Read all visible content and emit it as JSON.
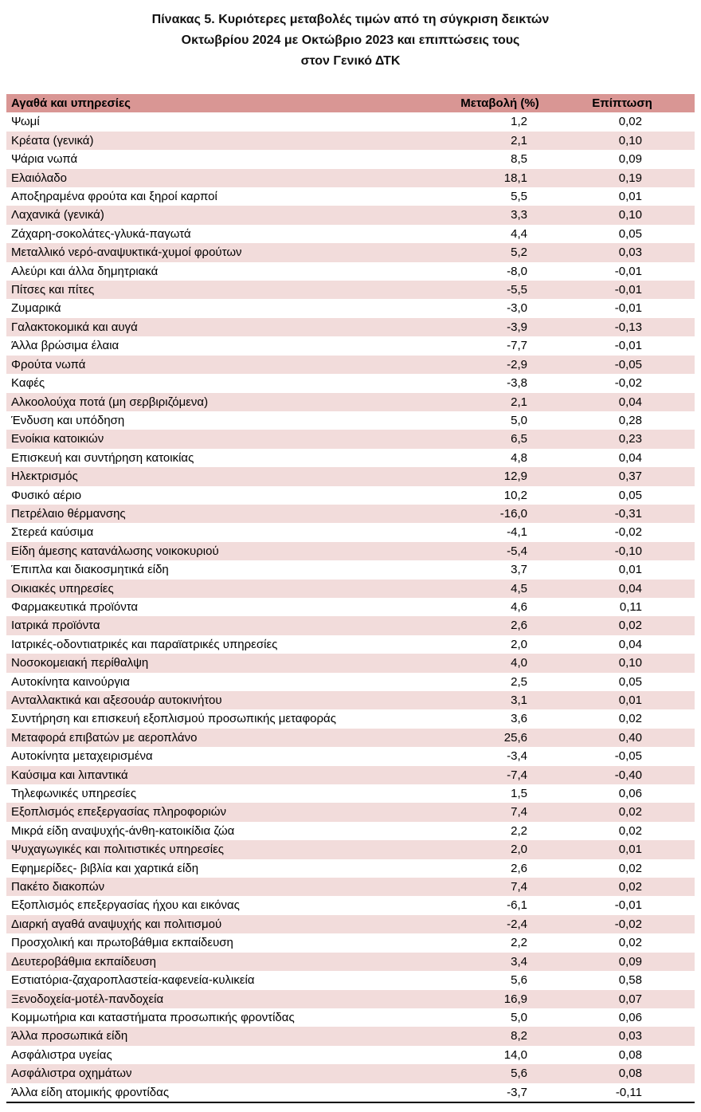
{
  "title": {
    "line1": "Πίνακας  5. Κυριότερες μεταβολές τιμών από τη σύγκριση δεικτών",
    "line2": "Οκτωβρίου 2024 με Οκτώβριο 2023 και επιπτώσεις τους",
    "line3": "στον Γενικό ΔΤΚ"
  },
  "colors": {
    "header_bg": "#d99694",
    "alt_row_bg": "#f2dcdb",
    "row_bg": "#ffffff",
    "text": "#000000"
  },
  "chart_data": {
    "type": "table",
    "title": "Πίνακας 5. Κυριότερες μεταβολές τιμών από τη σύγκριση δεικτών Οκτωβρίου 2024 με Οκτώβριο 2023 και επιπτώσεις τους στον Γενικό ΔΤΚ",
    "columns": [
      "Αγαθά και υπηρεσίες",
      "Μεταβολή (%)",
      "Επίπτωση"
    ],
    "rows": [
      [
        "Ψωμί",
        "1,2",
        "0,02"
      ],
      [
        "Κρέατα (γενικά)",
        "2,1",
        "0,10"
      ],
      [
        "Ψάρια νωπά",
        "8,5",
        "0,09"
      ],
      [
        "Ελαιόλαδο",
        "18,1",
        "0,19"
      ],
      [
        "Αποξηραμένα φρούτα και ξηροί καρποί",
        "5,5",
        "0,01"
      ],
      [
        "Λαχανικά (γενικά)",
        "3,3",
        "0,10"
      ],
      [
        "Ζάχαρη-σοκολάτες-γλυκά-παγωτά",
        "4,4",
        "0,05"
      ],
      [
        "Μεταλλικό νερό-αναψυκτικά-χυμοί φρούτων",
        "5,2",
        "0,03"
      ],
      [
        "Αλεύρι και άλλα δημητριακά",
        "-8,0",
        "-0,01"
      ],
      [
        "Πίτσες και πίτες",
        "-5,5",
        "-0,01"
      ],
      [
        "Ζυμαρικά",
        "-3,0",
        "-0,01"
      ],
      [
        "Γαλακτοκομικά και αυγά",
        "-3,9",
        "-0,13"
      ],
      [
        "Άλλα βρώσιμα έλαια",
        "-7,7",
        "-0,01"
      ],
      [
        "Φρούτα νωπά",
        "-2,9",
        "-0,05"
      ],
      [
        "Καφές",
        "-3,8",
        "-0,02"
      ],
      [
        "Αλκοολούχα ποτά (μη σερβιριζόμενα)",
        "2,1",
        "0,04"
      ],
      [
        "Ένδυση και υπόδηση",
        "5,0",
        "0,28"
      ],
      [
        "Ενοίκια κατοικιών",
        "6,5",
        "0,23"
      ],
      [
        "Επισκευή και συντήρηση κατοικίας",
        "4,8",
        "0,04"
      ],
      [
        "Ηλεκτρισμός",
        "12,9",
        "0,37"
      ],
      [
        "Φυσικό αέριο",
        "10,2",
        "0,05"
      ],
      [
        "Πετρέλαιο θέρμανσης",
        "-16,0",
        "-0,31"
      ],
      [
        "Στερεά καύσιμα",
        "-4,1",
        "-0,02"
      ],
      [
        "Είδη άμεσης κατανάλωσης νοικοκυριού",
        "-5,4",
        "-0,10"
      ],
      [
        "Έπιπλα και διακοσμητικά είδη",
        "3,7",
        "0,01"
      ],
      [
        "Οικιακές υπηρεσίες",
        "4,5",
        "0,04"
      ],
      [
        "Φαρμακευτικά προϊόντα",
        "4,6",
        "0,11"
      ],
      [
        "Ιατρικά προϊόντα",
        "2,6",
        "0,02"
      ],
      [
        "Ιατρικές-οδοντιατρικές και παραϊατρικές υπηρεσίες",
        "2,0",
        "0,04"
      ],
      [
        "Νοσοκομειακή περίθαλψη",
        "4,0",
        "0,10"
      ],
      [
        "Αυτοκίνητα καινούργια",
        "2,5",
        "0,05"
      ],
      [
        "Ανταλλακτικά και αξεσουάρ αυτοκινήτου",
        "3,1",
        "0,01"
      ],
      [
        "Συντήρηση και επισκευή εξοπλισμού προσωπικής μεταφοράς",
        "3,6",
        "0,02"
      ],
      [
        "Μεταφορά επιβατών με αεροπλάνο",
        "25,6",
        "0,40"
      ],
      [
        "Αυτοκίνητα μεταχειρισμένα",
        "-3,4",
        "-0,05"
      ],
      [
        "Καύσιμα και λιπαντικά",
        "-7,4",
        "-0,40"
      ],
      [
        "Τηλεφωνικές υπηρεσίες",
        "1,5",
        "0,06"
      ],
      [
        "Εξοπλισμός επεξεργασίας πληροφοριών",
        "7,4",
        "0,02"
      ],
      [
        "Μικρά είδη αναψυχής-άνθη-κατοικίδια ζώα",
        "2,2",
        "0,02"
      ],
      [
        "Ψυχαγωγικές και πολιτιστικές υπηρεσίες",
        "2,0",
        "0,01"
      ],
      [
        "Εφημερίδες- βιβλία και χαρτικά είδη",
        "2,6",
        "0,02"
      ],
      [
        "Πακέτο διακοπών",
        "7,4",
        "0,02"
      ],
      [
        "Εξοπλισμός επεξεργασίας ήχου και εικόνας",
        "-6,1",
        "-0,01"
      ],
      [
        "Διαρκή αγαθά αναψυχής και πολιτισμού",
        "-2,4",
        "-0,02"
      ],
      [
        "Προσχολική και πρωτοβάθμια εκπαίδευση",
        "2,2",
        "0,02"
      ],
      [
        "Δευτεροβάθμια εκπαίδευση",
        "3,4",
        "0,09"
      ],
      [
        "Εστιατόρια-ζαχαροπλαστεία-καφενεία-κυλικεία",
        "5,6",
        "0,58"
      ],
      [
        "Ξενοδοχεία-μοτέλ-πανδοχεία",
        "16,9",
        "0,07"
      ],
      [
        "Κομμωτήρια και καταστήματα προσωπικής φροντίδας",
        "5,0",
        "0,06"
      ],
      [
        "Άλλα προσωπικά είδη",
        "8,2",
        "0,03"
      ],
      [
        "Ασφάλιστρα υγείας",
        "14,0",
        "0,08"
      ],
      [
        "Ασφάλιστρα οχημάτων",
        "5,6",
        "0,08"
      ],
      [
        "Άλλα είδη ατομικής φροντίδας",
        "-3,7",
        "-0,11"
      ]
    ]
  }
}
